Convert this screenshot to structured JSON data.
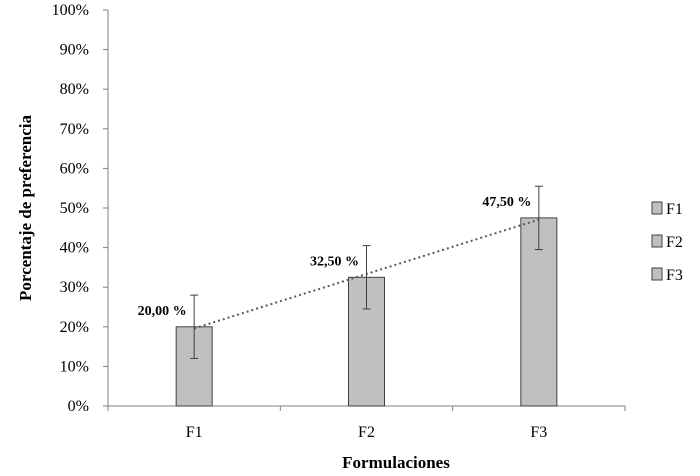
{
  "chart_data": {
    "type": "bar",
    "categories": [
      "F1",
      "F2",
      "F3"
    ],
    "values": [
      20.0,
      32.5,
      47.5
    ],
    "error_bars": [
      8.0,
      8.0,
      8.0
    ],
    "data_labels": [
      "20,00 %",
      "32,50 %",
      "47,50 %"
    ],
    "xlabel": "Formulaciones",
    "ylabel": "Porcentaje de preferencia",
    "ylim": [
      0,
      100
    ],
    "y_ticks": [
      "0%",
      "10%",
      "20%",
      "30%",
      "40%",
      "50%",
      "60%",
      "70%",
      "80%",
      "90%",
      "100%"
    ],
    "legend": [
      "F1",
      "F2",
      "F3"
    ],
    "legend_position": "right",
    "trendline": "linear dotted",
    "grid": false,
    "colors": {
      "bar_fill": "#c0c0c0",
      "bar_stroke": "#404040",
      "axis": "#7f7f7f",
      "trendline": "#595959"
    }
  }
}
